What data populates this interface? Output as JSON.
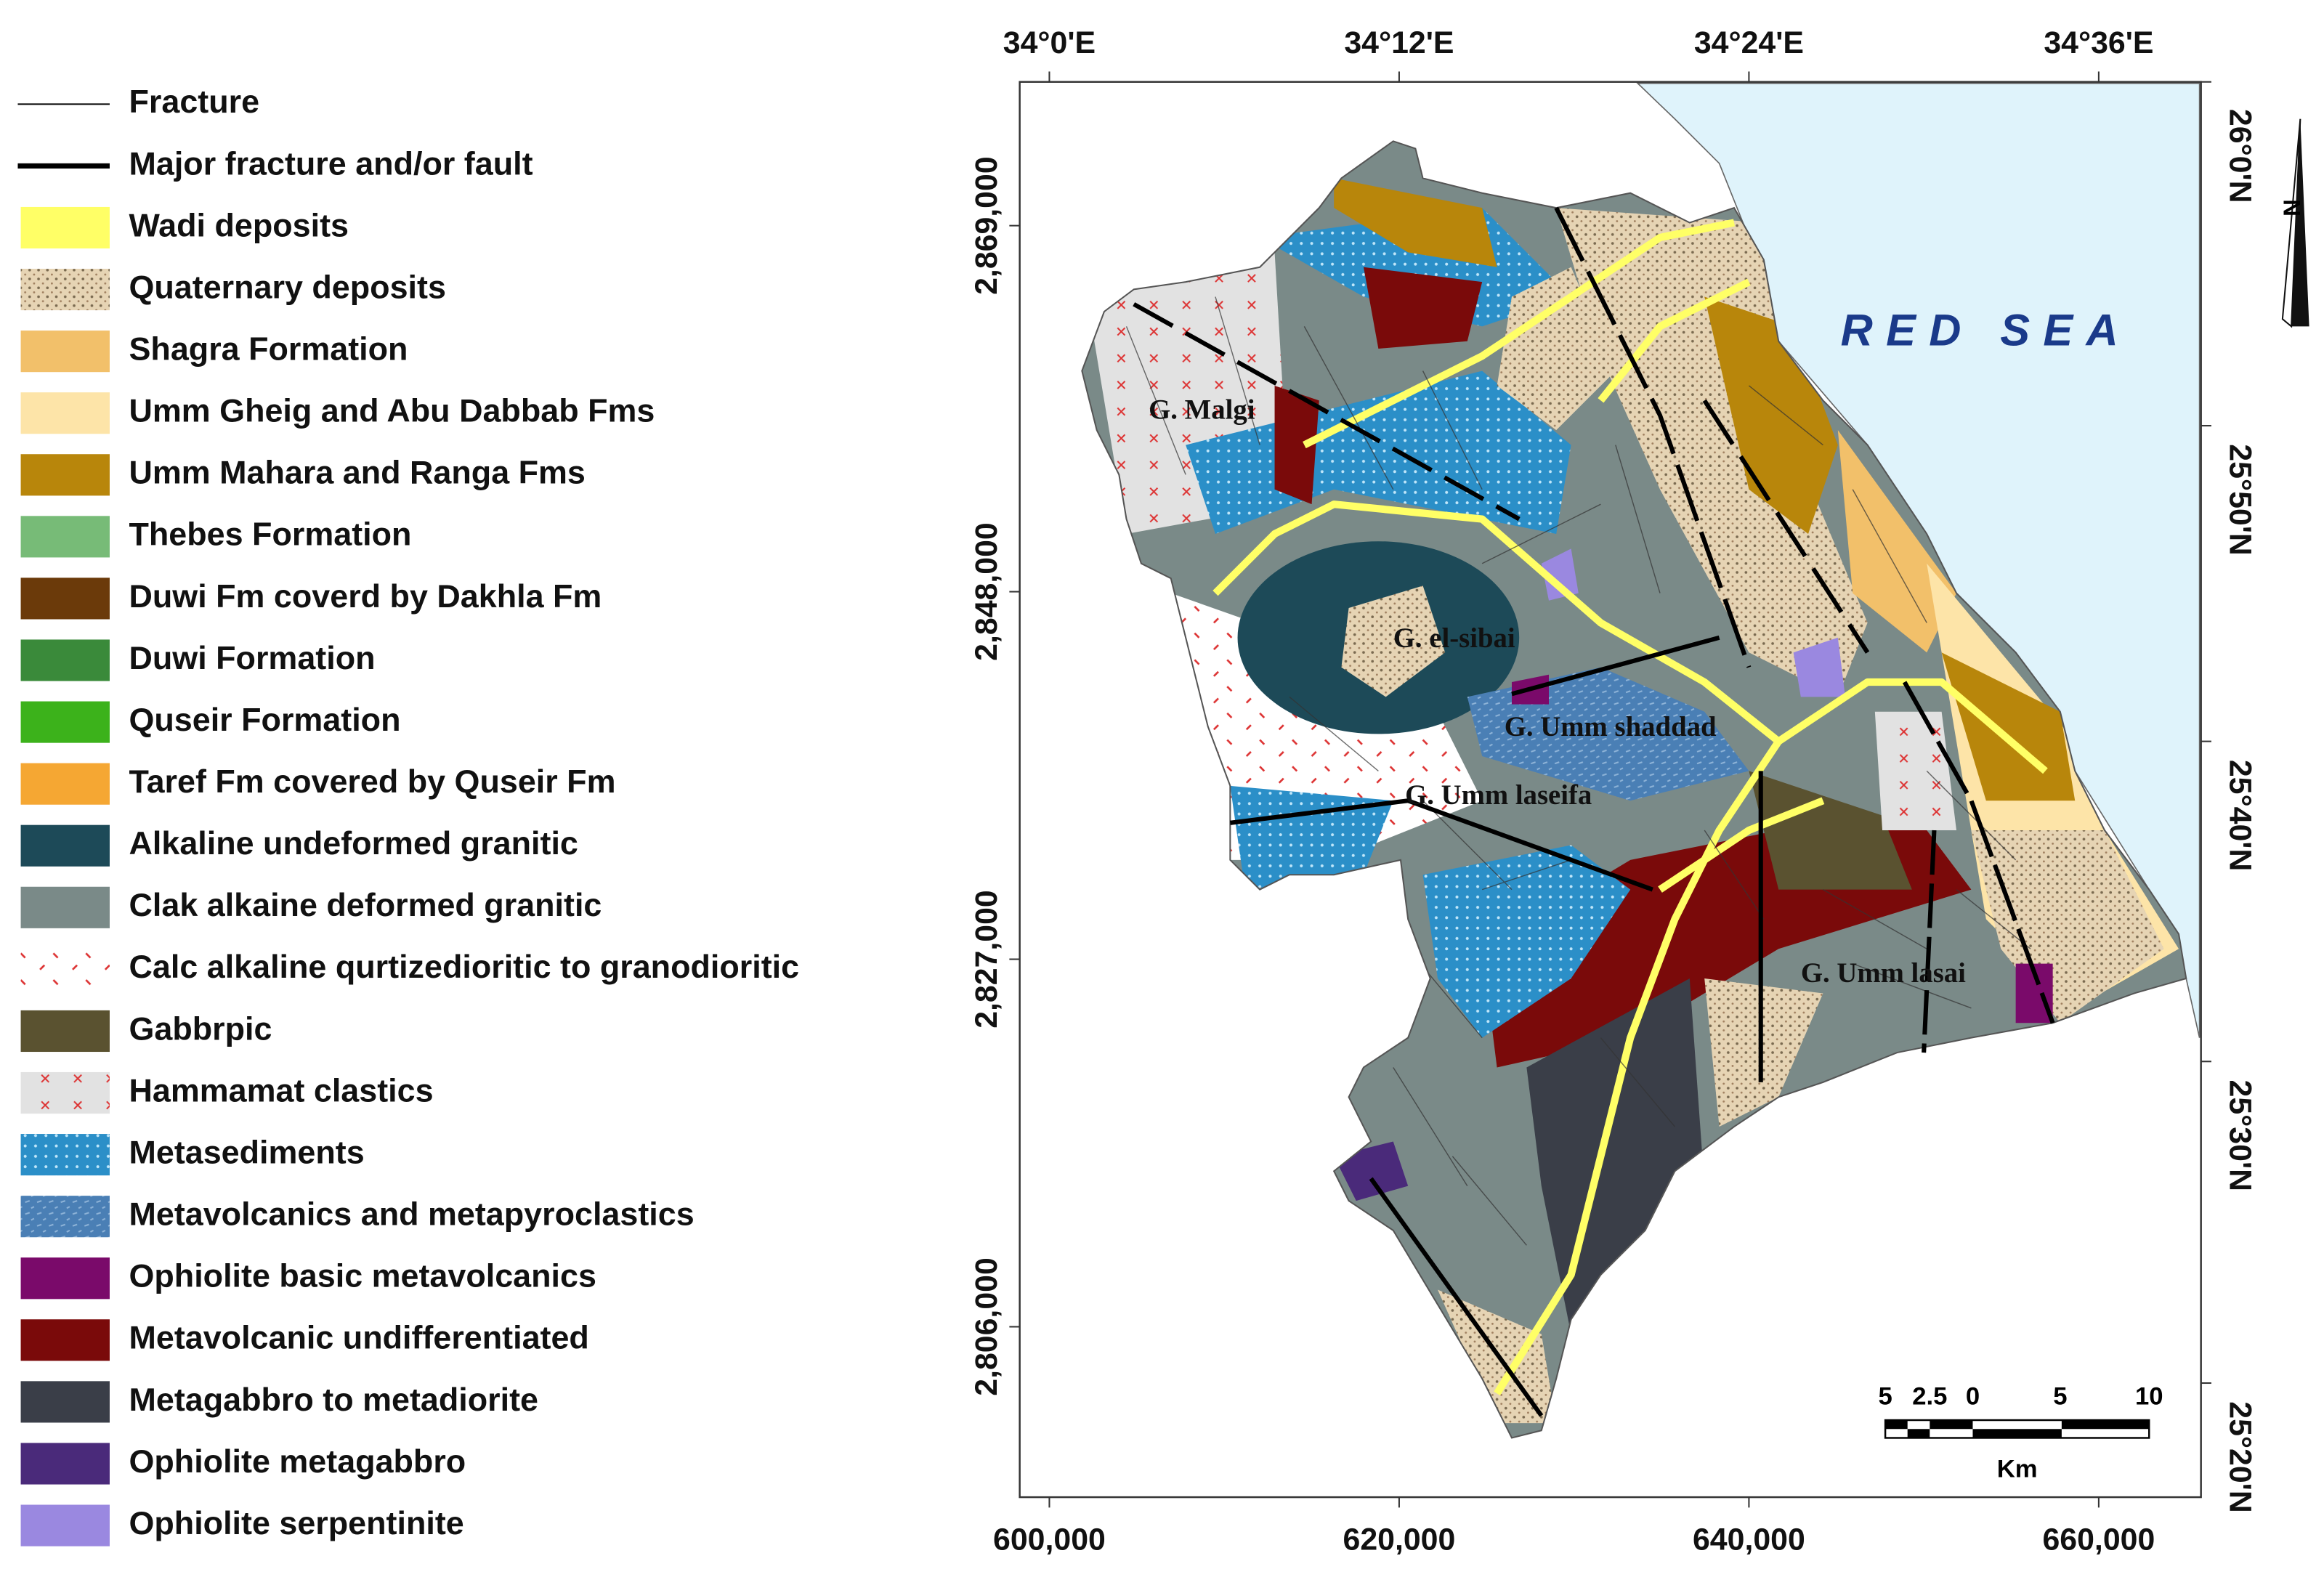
{
  "legend": [
    {
      "label": "Fracture",
      "color": "#000000"
    },
    {
      "label": "Major fracture and/or fault",
      "color": "#000000"
    },
    {
      "label": "Wadi deposits",
      "color": "#ffff66"
    },
    {
      "label": "Quaternary deposits",
      "color": "#e6d4b4"
    },
    {
      "label": "Shagra Formation",
      "color": "#f2c06a"
    },
    {
      "label": "Umm Gheig and Abu Dabbab Fms",
      "color": "#fde4a8"
    },
    {
      "label": "Umm Mahara and Ranga Fms",
      "color": "#b8860b"
    },
    {
      "label": "Thebes Formation",
      "color": "#77bb77"
    },
    {
      "label": "Duwi Fm coverd by Dakhla Fm",
      "color": "#6b3a0a"
    },
    {
      "label": "Duwi Formation",
      "color": "#3a8a3a"
    },
    {
      "label": "Quseir Formation",
      "color": "#3cb21b"
    },
    {
      "label": "Taref Fm covered by Quseir Fm",
      "color": "#f5a733"
    },
    {
      "label": "Alkaline undeformed granitic",
      "color": "#1d4a58"
    },
    {
      "label": "Clak alkaine deformed granitic",
      "color": "#7a8a88"
    },
    {
      "label": "Calc alkaline qurtizedioritic to granodioritic",
      "color": "#ffffff"
    },
    {
      "label": "Gabbrpic",
      "color": "#5a5230"
    },
    {
      "label": "Hammamat clastics",
      "color": "#e2e2e2"
    },
    {
      "label": "Metasediments",
      "color": "#2b8fc8"
    },
    {
      "label": "Metavolcanics and metapyroclastics",
      "color": "#4a7fb5"
    },
    {
      "label": "Ophiolite basic metavolcanics",
      "color": "#7a0a6a"
    },
    {
      "label": "Metavolcanic undifferentiated",
      "color": "#7a0a0a"
    },
    {
      "label": "Metagabbro to metadiorite",
      "color": "#3a3e48"
    },
    {
      "label": "Ophiolite metagabbro",
      "color": "#4a2a7a"
    },
    {
      "label": "Ophiolite serpentinite",
      "color": "#9a88e0"
    }
  ],
  "map": {
    "top_labels": [
      "34°0'E",
      "34°12'E",
      "34°24'E",
      "34°36'E"
    ],
    "right_labels": [
      "26°0'N",
      "25°50'N",
      "25°40'N",
      "25°30'N",
      "25°20'N"
    ],
    "left_labels": [
      "2,869,000",
      "2,848,000",
      "2,827,000",
      "2,806,000"
    ],
    "bottom_labels": [
      "600,000",
      "620,000",
      "640,000",
      "660,000"
    ],
    "place_labels": [
      "G. Malgi",
      "G. el-sibai",
      "G. Umm shaddad",
      "G. Umm laseifa",
      "G. Umm lasai"
    ],
    "sea_label": "RED SEA",
    "scale_bar": {
      "ticks": [
        "5",
        "2.5",
        "0",
        "5",
        "10"
      ],
      "unit": "Km"
    },
    "north": "N"
  }
}
